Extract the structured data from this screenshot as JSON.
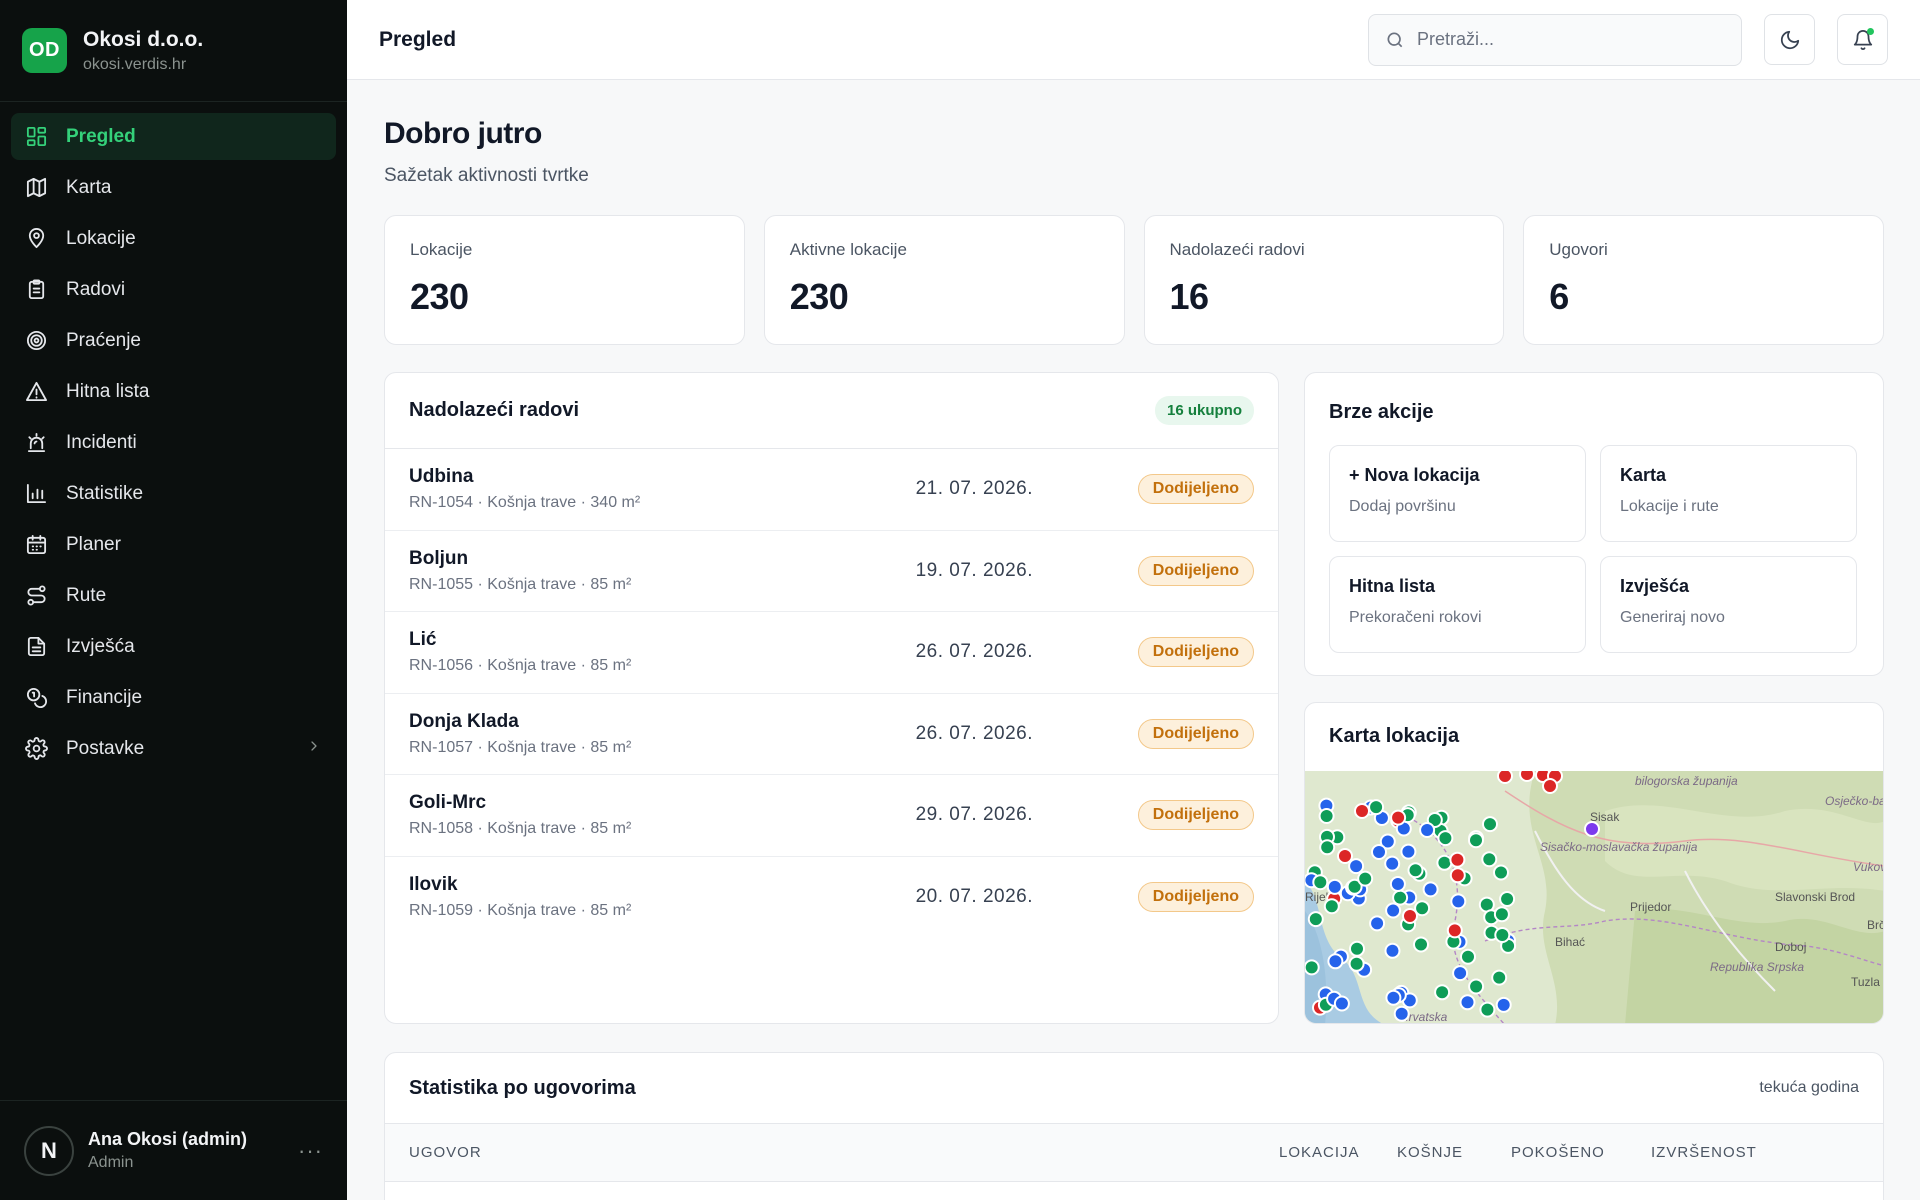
{
  "brand": {
    "initials": "OD",
    "name": "Okosi d.o.o.",
    "domain": "okosi.verdis.hr"
  },
  "nav": [
    {
      "label": "Pregled",
      "icon": "dashboard-icon",
      "active": true
    },
    {
      "label": "Karta",
      "icon": "map-icon"
    },
    {
      "label": "Lokacije",
      "icon": "map-pin-icon"
    },
    {
      "label": "Radovi",
      "icon": "clipboard-icon"
    },
    {
      "label": "Praćenje",
      "icon": "target-icon"
    },
    {
      "label": "Hitna lista",
      "icon": "warning-icon"
    },
    {
      "label": "Incidenti",
      "icon": "siren-icon"
    },
    {
      "label": "Statistike",
      "icon": "bar-chart-icon"
    },
    {
      "label": "Planer",
      "icon": "calendar-icon"
    },
    {
      "label": "Rute",
      "icon": "route-icon"
    },
    {
      "label": "Izvješća",
      "icon": "document-icon"
    },
    {
      "label": "Financije",
      "icon": "coins-icon"
    },
    {
      "label": "Postavke",
      "icon": "gear-icon",
      "expandable": true
    }
  ],
  "user": {
    "initial": "N",
    "name": "Ana Okosi (admin)",
    "role": "Admin",
    "more": "···"
  },
  "topbar": {
    "title": "Pregled",
    "search_placeholder": "Pretraži..."
  },
  "greeting": {
    "title": "Dobro jutro",
    "subtitle": "Sažetak aktivnosti tvrtke"
  },
  "stats": [
    {
      "label": "Lokacije",
      "value": "230"
    },
    {
      "label": "Aktivne lokacije",
      "value": "230"
    },
    {
      "label": "Nadolazeći radovi",
      "value": "16"
    },
    {
      "label": "Ugovori",
      "value": "6"
    }
  ],
  "upcoming": {
    "title": "Nadolazeći radovi",
    "total": "16 ukupno",
    "rows": [
      {
        "name": "Udbina",
        "meta": "RN-1054 · Košnja trave · 340 m²",
        "date": "21. 07. 2026.",
        "status": "Dodijeljeno"
      },
      {
        "name": "Boljun",
        "meta": "RN-1055 · Košnja trave · 85 m²",
        "date": "19. 07. 2026.",
        "status": "Dodijeljeno"
      },
      {
        "name": "Lić",
        "meta": "RN-1056 · Košnja trave · 85 m²",
        "date": "26. 07. 2026.",
        "status": "Dodijeljeno"
      },
      {
        "name": "Donja Klada",
        "meta": "RN-1057 · Košnja trave · 85 m²",
        "date": "26. 07. 2026.",
        "status": "Dodijeljeno"
      },
      {
        "name": "Goli-Mrc",
        "meta": "RN-1058 · Košnja trave · 85 m²",
        "date": "29. 07. 2026.",
        "status": "Dodijeljeno"
      },
      {
        "name": "Ilovik",
        "meta": "RN-1059 · Košnja trave · 85 m²",
        "date": "20. 07. 2026.",
        "status": "Dodijeljeno"
      }
    ]
  },
  "quick_actions": {
    "title": "Brze akcije",
    "items": [
      {
        "title": "+ Nova lokacija",
        "subtitle": "Dodaj površinu"
      },
      {
        "title": "Karta",
        "subtitle": "Lokacije i rute"
      },
      {
        "title": "Hitna lista",
        "subtitle": "Prekoračeni rokovi"
      },
      {
        "title": "Izvješća",
        "subtitle": "Generiraj novo"
      }
    ]
  },
  "map": {
    "title": "Karta lokacija",
    "place_labels": [
      "bilogorska županija",
      "Osječko-baranjska županija",
      "Sisak",
      "Sisačko-moslavačka županija",
      "Prijedor",
      "Slavonski Brod",
      "Bihać",
      "Republika Srpska",
      "Doboj",
      "Tuzla",
      "Vukovar",
      "Brčko",
      "Hrvatska",
      "Rijeka"
    ],
    "marker_colors": {
      "green": "#0f9d58",
      "blue": "#2563eb",
      "red": "#dc2626",
      "purple": "#7c3aed"
    }
  },
  "contracts": {
    "title": "Statistika po ugovorima",
    "period": "tekuća godina",
    "columns": [
      "Ugovor",
      "Lokacija",
      "Košnje",
      "Pokošeno",
      "Izvršenost"
    ]
  }
}
